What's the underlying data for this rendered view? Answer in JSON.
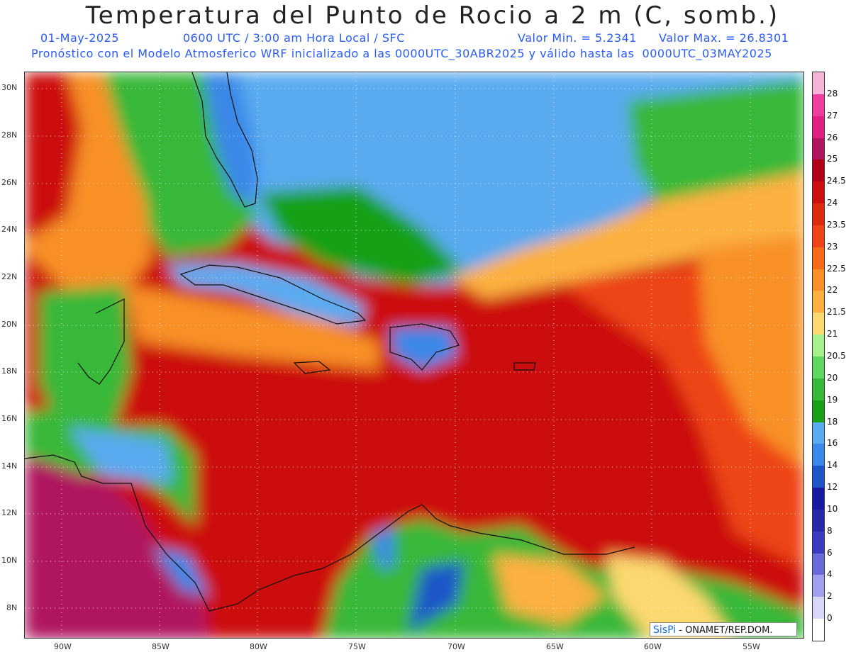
{
  "header": {
    "title": "Temperatura del Punto de Rocio a 2 m (C, somb.)",
    "date": "01-May-2025",
    "time": "0600 UTC / 3:00 am Hora Local / SFC",
    "min": "Valor Min. = 5.2341",
    "max": "Valor Max. = 26.8301",
    "model_line": "Pronóstico con el Modelo Atmosferico WRF inicializado a las 0000UTC_30ABR2025 y válido hasta las  0000UTC_03MAY2025"
  },
  "map": {
    "lat_labels": [
      "30N",
      "28N",
      "26N",
      "24N",
      "22N",
      "20N",
      "18N",
      "16N",
      "14N",
      "12N",
      "10N",
      "8N"
    ],
    "lon_labels": [
      "90W",
      "85W",
      "80W",
      "75W",
      "70W",
      "65W",
      "60W",
      "55W"
    ]
  },
  "colorbar": {
    "labels": [
      "28",
      "27",
      "26",
      "25",
      "24.5",
      "24",
      "23.5",
      "23",
      "22.5",
      "22",
      "21.5",
      "21",
      "20.5",
      "20",
      "19",
      "18",
      "16",
      "14",
      "12",
      "10",
      "8",
      "6",
      "4",
      "2",
      "0"
    ],
    "colors": [
      "#f6b4d8",
      "#ee3fa0",
      "#e02082",
      "#b01560",
      "#b00018",
      "#cc1010",
      "#de2a10",
      "#ee4418",
      "#f66a18",
      "#f89028",
      "#fbb040",
      "#fcd870",
      "#a6f08e",
      "#5fd660",
      "#38b838",
      "#18a018",
      "#5aaaf0",
      "#3a88e8",
      "#1e56c8",
      "#1818a0",
      "#2828a8",
      "#3c3cc0",
      "#6a6ad8",
      "#a0a0ec",
      "#d8d8f6",
      "#ffffff"
    ]
  },
  "credit": {
    "logo": "SisPi",
    "text": "- ONAMET/REP.DOM."
  }
}
